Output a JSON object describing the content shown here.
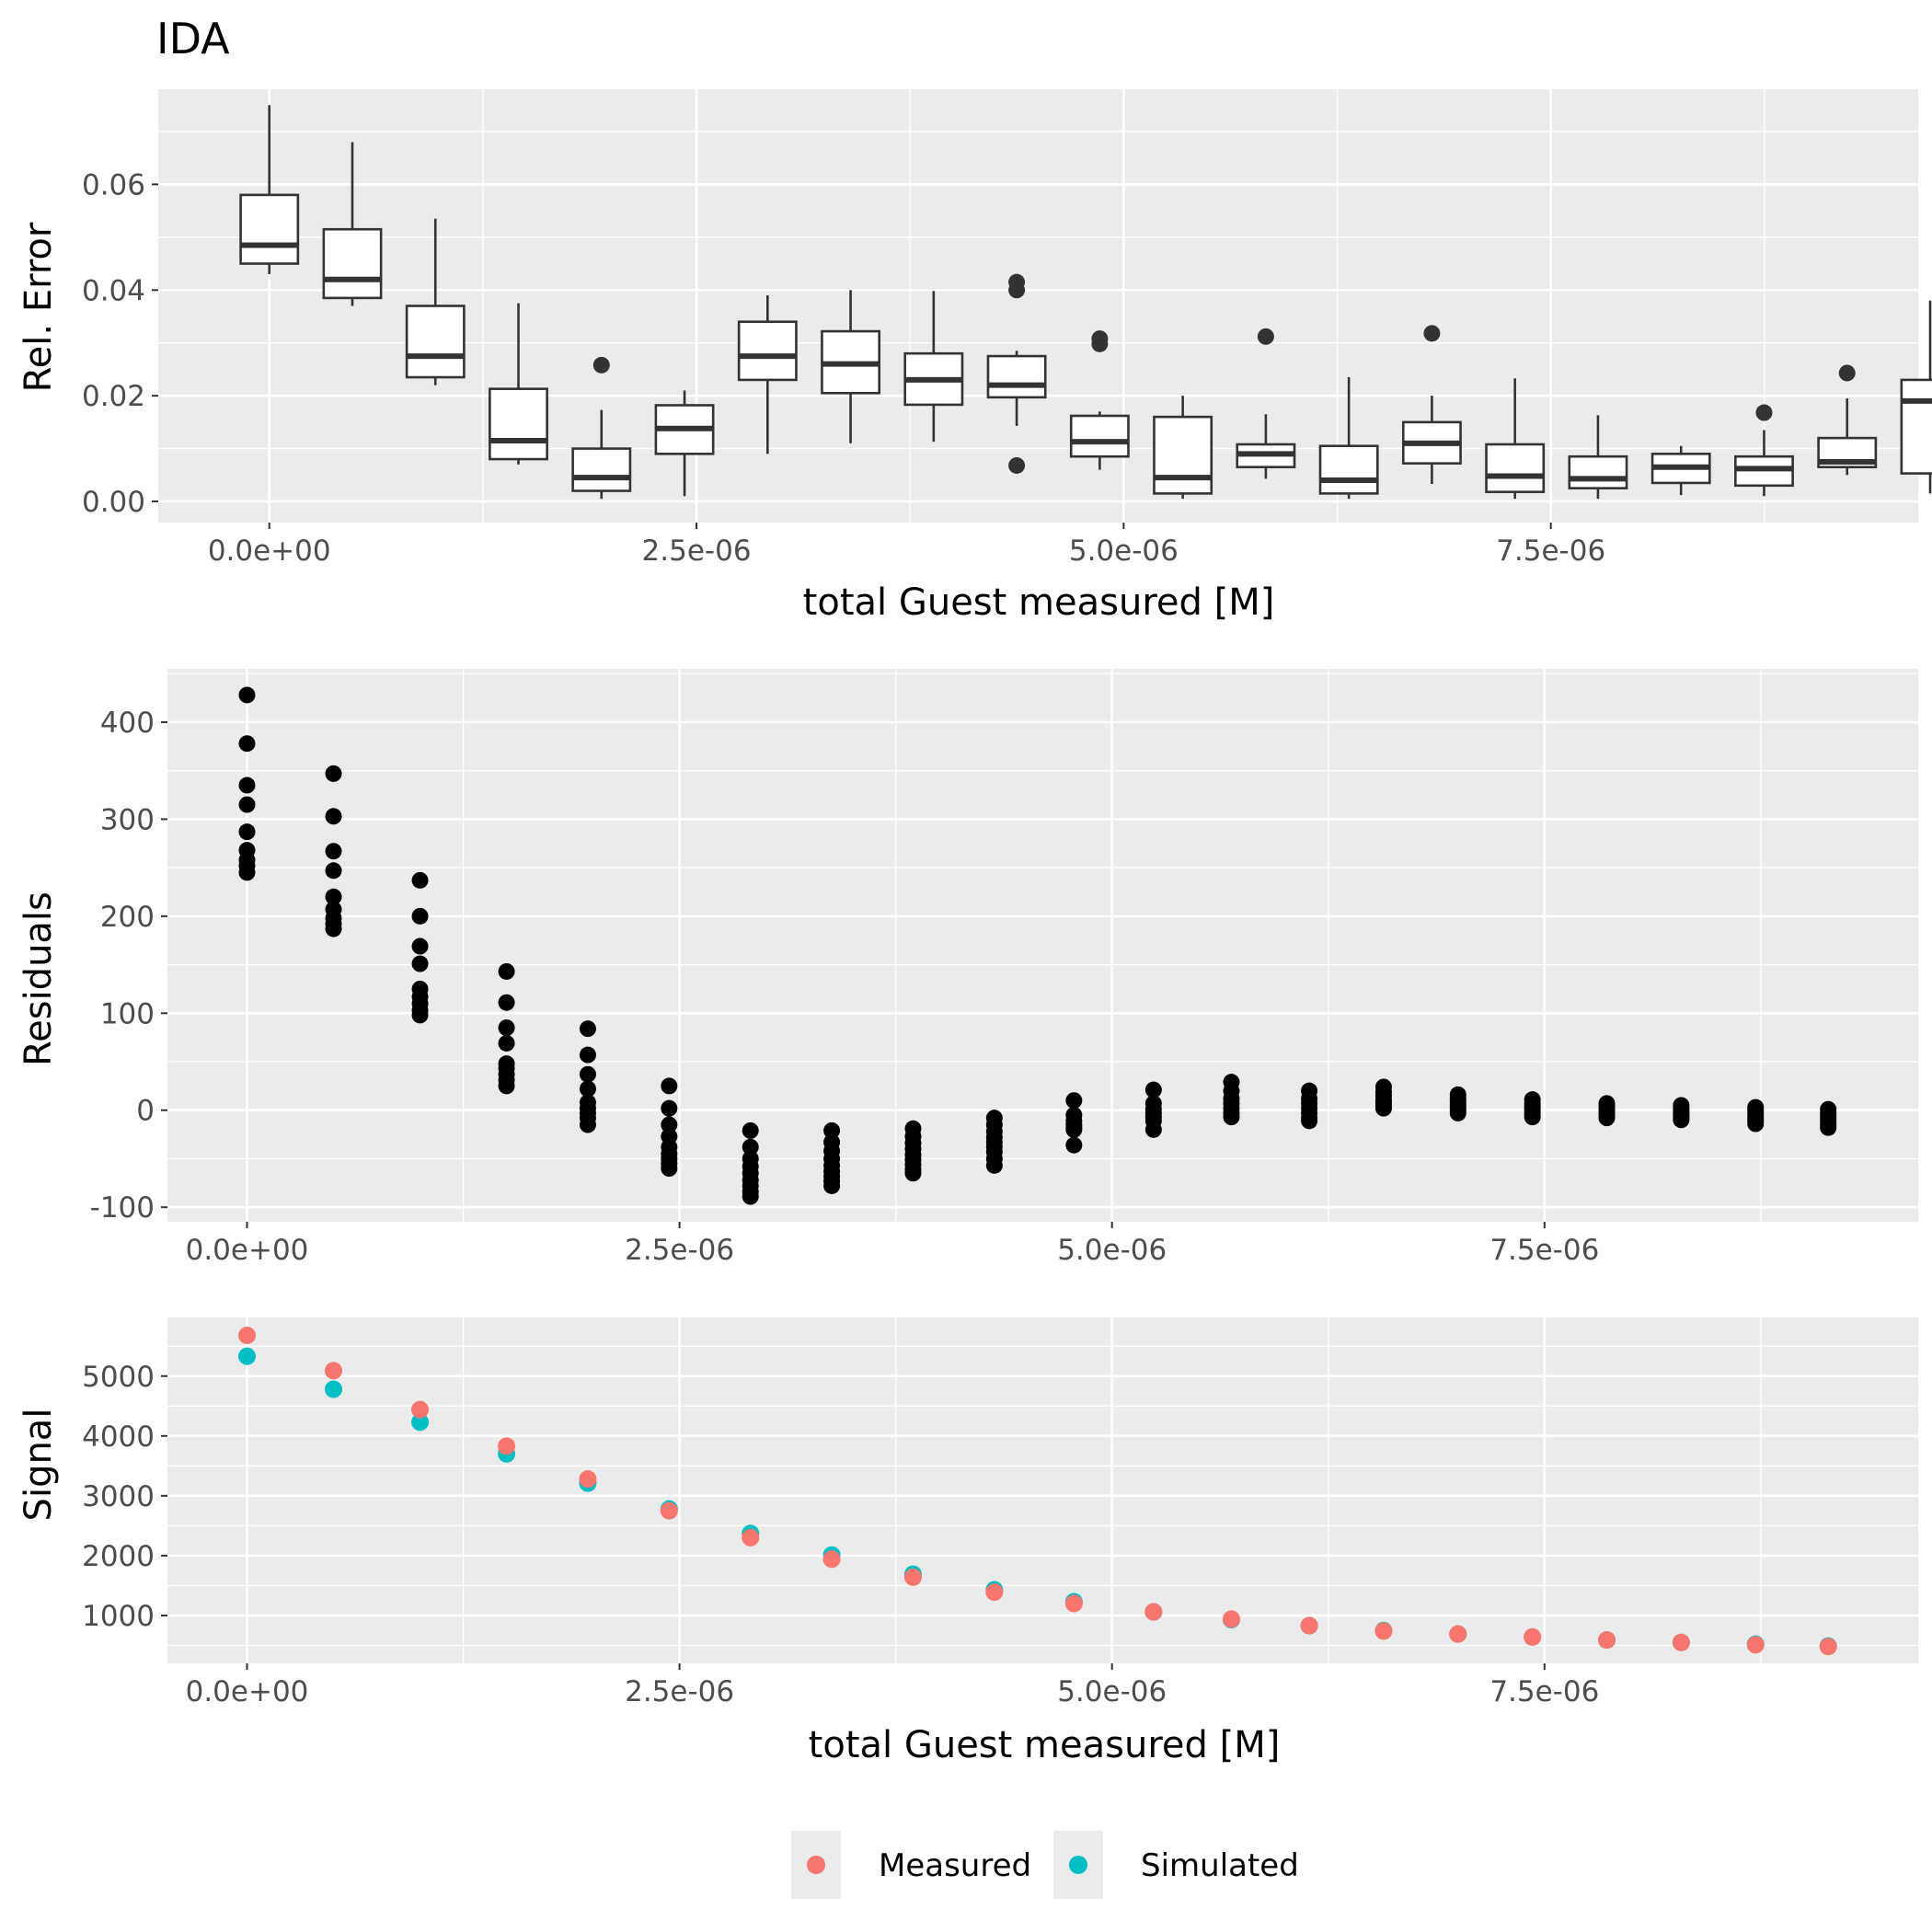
{
  "title": "IDA",
  "colors": {
    "panel_bg": "#EBEBEB",
    "grid": "#FFFFFF",
    "tick_text": "#4D4D4D",
    "measured": "#F8766D",
    "simulated": "#00BFC4",
    "points": "#000000"
  },
  "legend": {
    "placement": "bottom",
    "items": [
      {
        "label": "Measured",
        "color": "#F8766D"
      },
      {
        "label": "Simulated",
        "color": "#00BFC4"
      }
    ]
  },
  "chart_data": [
    {
      "type": "box",
      "title": "IDA",
      "xlabel": "total Guest measured [M]",
      "ylabel": "Rel. Error",
      "xlim": [
        -6.5e-07,
        9.65e-06
      ],
      "ylim": [
        -0.004,
        0.078
      ],
      "x_ticks": [
        "0.0e+00",
        "2.5e-06",
        "5.0e-06",
        "7.5e-06"
      ],
      "x_tick_values": [
        0,
        2.5e-06,
        5e-06,
        7.5e-06
      ],
      "y_ticks": [
        "0.00",
        "0.02",
        "0.04",
        "0.06"
      ],
      "y_tick_values": [
        0,
        0.02,
        0.04,
        0.06
      ],
      "boxes": [
        {
          "x": 0.0,
          "low": 0.043,
          "q1": 0.045,
          "median": 0.0485,
          "q3": 0.058,
          "high": 0.075,
          "outliers": []
        },
        {
          "x": 4.86e-07,
          "low": 0.037,
          "q1": 0.0385,
          "median": 0.042,
          "q3": 0.0515,
          "high": 0.068,
          "outliers": []
        },
        {
          "x": 9.72e-07,
          "low": 0.022,
          "q1": 0.0235,
          "median": 0.0275,
          "q3": 0.037,
          "high": 0.0535,
          "outliers": []
        },
        {
          "x": 1.458e-06,
          "low": 0.007,
          "q1": 0.008,
          "median": 0.0115,
          "q3": 0.0213,
          "high": 0.0375,
          "outliers": []
        },
        {
          "x": 1.944e-06,
          "low": 0.0005,
          "q1": 0.002,
          "median": 0.0045,
          "q3": 0.01,
          "high": 0.0173,
          "outliers": [
            0.0258
          ]
        },
        {
          "x": 2.43e-06,
          "low": 0.001,
          "q1": 0.009,
          "median": 0.0138,
          "q3": 0.0182,
          "high": 0.021,
          "outliers": []
        },
        {
          "x": 2.916e-06,
          "low": 0.009,
          "q1": 0.023,
          "median": 0.0275,
          "q3": 0.034,
          "high": 0.039,
          "outliers": []
        },
        {
          "x": 3.402e-06,
          "low": 0.011,
          "q1": 0.0205,
          "median": 0.026,
          "q3": 0.0322,
          "high": 0.04,
          "outliers": []
        },
        {
          "x": 3.888e-06,
          "low": 0.0113,
          "q1": 0.0183,
          "median": 0.023,
          "q3": 0.028,
          "high": 0.0398,
          "outliers": []
        },
        {
          "x": 4.374e-06,
          "low": 0.0143,
          "q1": 0.0197,
          "median": 0.022,
          "q3": 0.0275,
          "high": 0.0285,
          "outliers": [
            0.0415,
            0.04,
            0.0068
          ]
        },
        {
          "x": 4.86e-06,
          "low": 0.006,
          "q1": 0.0085,
          "median": 0.0113,
          "q3": 0.0162,
          "high": 0.017,
          "outliers": [
            0.0308,
            0.0298
          ]
        },
        {
          "x": 5.346e-06,
          "low": 0.0005,
          "q1": 0.0015,
          "median": 0.0045,
          "q3": 0.016,
          "high": 0.02,
          "outliers": []
        },
        {
          "x": 5.832e-06,
          "low": 0.0043,
          "q1": 0.0065,
          "median": 0.009,
          "q3": 0.0108,
          "high": 0.0165,
          "outliers": [
            0.0312
          ]
        },
        {
          "x": 6.318e-06,
          "low": 0.0005,
          "q1": 0.0015,
          "median": 0.004,
          "q3": 0.0105,
          "high": 0.0235,
          "outliers": []
        },
        {
          "x": 6.804e-06,
          "low": 0.0033,
          "q1": 0.0072,
          "median": 0.011,
          "q3": 0.015,
          "high": 0.02,
          "outliers": [
            0.0318
          ]
        },
        {
          "x": 7.29e-06,
          "low": 0.0005,
          "q1": 0.0018,
          "median": 0.0048,
          "q3": 0.0108,
          "high": 0.0233,
          "outliers": []
        },
        {
          "x": 7.776e-06,
          "low": 0.0005,
          "q1": 0.0025,
          "median": 0.0043,
          "q3": 0.0085,
          "high": 0.0163,
          "outliers": []
        },
        {
          "x": 8.262e-06,
          "low": 0.0012,
          "q1": 0.0035,
          "median": 0.0065,
          "q3": 0.009,
          "high": 0.0105,
          "outliers": []
        },
        {
          "x": 8.748e-06,
          "low": 0.001,
          "q1": 0.003,
          "median": 0.0062,
          "q3": 0.0085,
          "high": 0.0135,
          "outliers": [
            0.0168
          ]
        },
        {
          "x": 9.234e-06,
          "low": 0.005,
          "q1": 0.0065,
          "median": 0.0075,
          "q3": 0.012,
          "high": 0.0195,
          "outliers": [
            0.0243
          ]
        },
        {
          "x": 9.72e-06,
          "low": 0.0015,
          "q1": 0.0053,
          "median": 0.019,
          "q3": 0.023,
          "high": 0.038,
          "outliers": []
        }
      ]
    },
    {
      "type": "scatter",
      "xlabel": "",
      "ylabel": "Residuals",
      "xlim": [
        -4.6e-07,
        9.66e-06
      ],
      "ylim": [
        -115,
        455
      ],
      "x_ticks": [
        "0.0e+00",
        "2.5e-06",
        "5.0e-06",
        "7.5e-06"
      ],
      "x_tick_values": [
        0,
        2.5e-06,
        5e-06,
        7.5e-06
      ],
      "y_ticks": [
        "-100",
        "0",
        "100",
        "200",
        "300",
        "400"
      ],
      "y_tick_values": [
        -100,
        0,
        100,
        200,
        300,
        400
      ],
      "series": [
        {
          "x": [
            0.0,
            5e-07,
            1e-06,
            1.5e-06,
            1.97e-06,
            2.44e-06,
            2.91e-06,
            3.38e-06,
            3.85e-06,
            4.32e-06,
            4.78e-06,
            5.24e-06,
            5.69e-06,
            6.14e-06,
            6.57e-06,
            7e-06,
            7.43e-06,
            7.86e-06,
            8.29e-06,
            8.72e-06,
            9.14e-06
          ],
          "y_groups": [
            [
              428,
              378,
              335,
              315,
              287,
              268,
              258,
              252,
              245
            ],
            [
              347,
              303,
              267,
              247,
              220,
              207,
              198,
              192,
              187
            ],
            [
              237,
              200,
              169,
              151,
              125,
              117,
              110,
              103,
              98
            ],
            [
              143,
              111,
              85,
              69,
              48,
              43,
              37,
              31,
              25
            ],
            [
              84,
              57,
              37,
              22,
              8,
              2,
              -3,
              -8,
              -15
            ],
            [
              25,
              2,
              -15,
              -27,
              -38,
              -45,
              -50,
              -55,
              -60
            ],
            [
              -21,
              -38,
              -50,
              -58,
              -65,
              -72,
              -78,
              -84,
              -89
            ],
            [
              -21,
              -33,
              -42,
              -50,
              -57,
              -63,
              -68,
              -73,
              -78
            ],
            [
              -19,
              -27,
              -34,
              -40,
              -46,
              -51,
              -56,
              -61,
              -65
            ],
            [
              -8,
              -15,
              -22,
              -28,
              -33,
              -38,
              -43,
              -50,
              -57
            ],
            [
              10,
              -5,
              -11,
              -15,
              -18,
              -20,
              -36
            ],
            [
              21,
              7,
              1,
              -3,
              -7,
              -11,
              -20
            ],
            [
              29,
              20,
              12,
              7,
              2,
              -3,
              -7
            ],
            [
              20,
              12,
              7,
              2,
              -3,
              -8,
              -11
            ],
            [
              24,
              19,
              15,
              11,
              8,
              5,
              2
            ],
            [
              16,
              12,
              9,
              6,
              3,
              0,
              -3
            ],
            [
              11,
              7,
              4,
              2,
              -1,
              -4,
              -7
            ],
            [
              7,
              4,
              1,
              -2,
              -4,
              -6,
              -8
            ],
            [
              5,
              2,
              -1,
              -3,
              -6,
              -8,
              -10
            ],
            [
              3,
              0,
              -3,
              -6,
              -9,
              -11,
              -14
            ],
            [
              1,
              -3,
              -6,
              -9,
              -12,
              -15,
              -18
            ]
          ]
        }
      ]
    },
    {
      "type": "scatter",
      "xlabel": "total Guest measured [M]",
      "ylabel": "Signal",
      "xlim": [
        -4.6e-07,
        9.66e-06
      ],
      "ylim": [
        200,
        5980
      ],
      "x_ticks": [
        "0.0e+00",
        "2.5e-06",
        "5.0e-06",
        "7.5e-06"
      ],
      "x_tick_values": [
        0,
        2.5e-06,
        5e-06,
        7.5e-06
      ],
      "y_ticks": [
        "1000",
        "2000",
        "3000",
        "4000",
        "5000"
      ],
      "y_tick_values": [
        1000,
        2000,
        3000,
        4000,
        5000
      ],
      "x": [
        0.0,
        5e-07,
        1e-06,
        1.5e-06,
        1.97e-06,
        2.44e-06,
        2.91e-06,
        3.38e-06,
        3.85e-06,
        4.32e-06,
        4.78e-06,
        5.24e-06,
        5.69e-06,
        6.14e-06,
        6.57e-06,
        7e-06,
        7.43e-06,
        7.86e-06,
        8.29e-06,
        8.72e-06,
        9.14e-06
      ],
      "series": [
        {
          "name": "Simulated",
          "color": "#00BFC4",
          "values": [
            5330,
            4780,
            4230,
            3700,
            3210,
            2780,
            2370,
            2010,
            1690,
            1430,
            1230,
            1060,
            930,
            830,
            750,
            690,
            640,
            590,
            550,
            520,
            490
          ]
        },
        {
          "name": "Measured",
          "color": "#F8766D",
          "values": [
            5680,
            5090,
            4440,
            3830,
            3280,
            2750,
            2300,
            1940,
            1640,
            1390,
            1200,
            1060,
            940,
            830,
            740,
            690,
            640,
            590,
            550,
            510,
            480
          ]
        }
      ]
    }
  ]
}
